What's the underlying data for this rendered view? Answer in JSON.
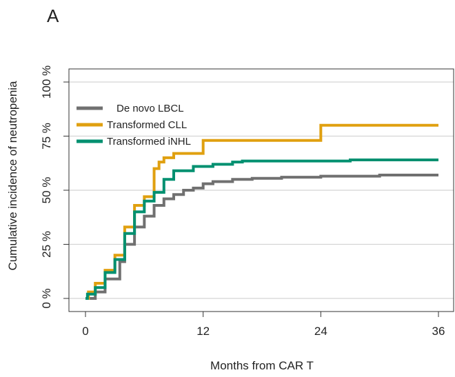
{
  "panel_label": "A",
  "chart_data": {
    "type": "line",
    "step": true,
    "xlabel": "Months from CAR T",
    "ylabel": "Cumulative incidence of neutropenia",
    "xlim": [
      0,
      36
    ],
    "ylim": [
      0,
      100
    ],
    "x_ticks": [
      0,
      12,
      24,
      36
    ],
    "x_tick_labels": [
      "0",
      "12",
      "24",
      "36"
    ],
    "y_ticks": [
      0,
      25,
      50,
      75,
      100
    ],
    "y_tick_labels": [
      "0 %",
      "25 %",
      "50 %",
      "75 %",
      "100 %"
    ],
    "grid": "horizontal",
    "legend_position": "top-left",
    "series": [
      {
        "name": "De novo LBCL",
        "color": "#707070",
        "x": [
          0,
          0.5,
          1,
          2,
          3,
          3.5,
          4,
          5,
          6,
          7,
          8,
          9,
          10,
          11,
          12,
          13,
          15,
          17,
          20,
          24,
          30,
          36
        ],
        "y": [
          0,
          0,
          3,
          9,
          9,
          17,
          25,
          33,
          38,
          43,
          46,
          48,
          50,
          51,
          53,
          54,
          55,
          55.5,
          56,
          56.5,
          57,
          57
        ]
      },
      {
        "name": "Transformed CLL",
        "color": "#e0a010",
        "x": [
          0,
          0.3,
          1,
          2,
          3,
          4,
          5,
          6,
          7,
          7.5,
          8,
          9,
          10,
          12,
          14,
          22,
          24,
          36
        ],
        "y": [
          0,
          3,
          7,
          13,
          20,
          33,
          43,
          47,
          60,
          63,
          65,
          67,
          67,
          73,
          73,
          73,
          80,
          80
        ]
      },
      {
        "name": "Transformed iNHL",
        "color": "#009070",
        "x": [
          0,
          0.2,
          1,
          2,
          3,
          4,
          5,
          6,
          7,
          8,
          9,
          10,
          11,
          13,
          15,
          16,
          27,
          36
        ],
        "y": [
          0,
          2,
          5,
          12,
          18,
          30,
          40,
          45,
          49,
          55,
          59,
          59,
          61,
          62,
          63,
          63.5,
          64,
          64
        ]
      }
    ]
  }
}
